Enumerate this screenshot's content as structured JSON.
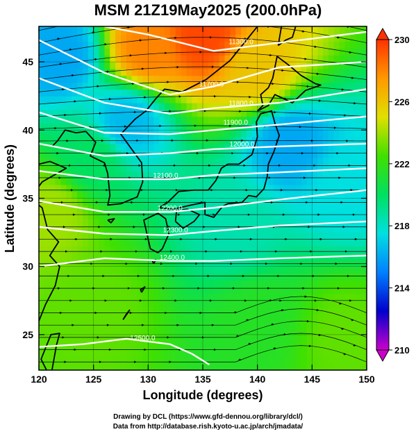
{
  "title": "MSM 21Z19May2025 (200.0hPa)",
  "credits": {
    "line1": "Drawing by DCL (https://www.gfd-dennou.org/library/dcl/)",
    "line2": "Data from http://database.rish.kyoto-u.ac.jp/arch/jmadata/"
  },
  "chart_data": {
    "type": "heatmap",
    "title": "MSM 21Z19May2025 (200.0hPa)",
    "xlabel": "Longitude (degrees)",
    "ylabel": "Latitude  (degrees)",
    "xlim": [
      120,
      150
    ],
    "ylim": [
      22.4,
      47.6
    ],
    "xticks": [
      120,
      125,
      130,
      135,
      140,
      145,
      150
    ],
    "yticks": [
      25,
      30,
      35,
      40,
      45
    ],
    "colorbar": {
      "min": 210,
      "max": 230,
      "ticks": [
        210,
        214,
        218,
        222,
        226,
        230
      ],
      "unit": "",
      "colors": [
        "#cc00cc",
        "#0000cc",
        "#0080ff",
        "#00e0e0",
        "#00e060",
        "#40e000",
        "#e0e000",
        "#ff9900",
        "#ff3300"
      ]
    },
    "contours": [
      {
        "label": "11300.0",
        "lat_at_lon": [
          [
            126,
            47.6
          ],
          [
            130,
            47.0
          ],
          [
            136,
            45.8
          ],
          [
            142,
            46.4
          ],
          [
            150,
            47.2
          ]
        ],
        "label_pos": [
          138.5,
          46.2
        ]
      },
      {
        "label": "11700.0",
        "lat_at_lon": [
          [
            120,
            46.6
          ],
          [
            126,
            44.2
          ],
          [
            132,
            42.6
          ],
          [
            136,
            43.2
          ],
          [
            142,
            44.6
          ],
          [
            150,
            45.0
          ]
        ],
        "label_pos": [
          135.8,
          43.1
        ]
      },
      {
        "label": "11800.0",
        "lat_at_lon": [
          [
            120,
            43.8
          ],
          [
            126,
            42.0
          ],
          [
            132,
            41.2
          ],
          [
            136,
            41.6
          ],
          [
            142,
            42.0
          ],
          [
            150,
            43.0
          ]
        ],
        "label_pos": [
          138.5,
          41.7
        ]
      },
      {
        "label": "11900.0",
        "lat_at_lon": [
          [
            120,
            41.3
          ],
          [
            126,
            39.8
          ],
          [
            132,
            39.7
          ],
          [
            136,
            40.0
          ],
          [
            142,
            40.4
          ],
          [
            150,
            41.0
          ]
        ],
        "label_pos": [
          138.0,
          40.3
        ]
      },
      {
        "label": "12000.0",
        "lat_at_lon": [
          [
            120,
            39.0
          ],
          [
            126,
            38.1
          ],
          [
            132,
            38.3
          ],
          [
            136,
            38.6
          ],
          [
            142,
            38.8
          ],
          [
            150,
            39.0
          ]
        ],
        "label_pos": [
          138.6,
          38.7
        ]
      },
      {
        "label": "12100.0",
        "lat_at_lon": [
          [
            120,
            37.0
          ],
          [
            126,
            36.4
          ],
          [
            132,
            36.4
          ],
          [
            136,
            36.7
          ],
          [
            142,
            36.9
          ],
          [
            150,
            37.2
          ]
        ],
        "label_pos": [
          131.6,
          36.4
        ]
      },
      {
        "label": "12200.0",
        "lat_at_lon": [
          [
            120,
            34.8
          ],
          [
            126,
            34.0
          ],
          [
            132,
            34.0
          ],
          [
            136,
            34.3
          ],
          [
            142,
            34.9
          ],
          [
            150,
            35.6
          ]
        ],
        "label_pos": [
          132.0,
          34.0
        ]
      },
      {
        "label": "12300.0",
        "lat_at_lon": [
          [
            120,
            32.9
          ],
          [
            126,
            32.4
          ],
          [
            132,
            32.3
          ],
          [
            136,
            32.6
          ],
          [
            142,
            33.0
          ],
          [
            150,
            33.3
          ]
        ],
        "label_pos": [
          132.5,
          32.4
        ]
      },
      {
        "label": "12400.0",
        "lat_at_lon": [
          [
            120,
            30.0
          ],
          [
            126,
            30.6
          ],
          [
            132,
            30.4
          ],
          [
            136,
            30.4
          ],
          [
            142,
            30.6
          ],
          [
            150,
            30.8
          ]
        ],
        "label_pos": [
          132.2,
          30.4
        ]
      },
      {
        "label": "12500.0",
        "lat_at_lon": [
          [
            120,
            24.1
          ],
          [
            124,
            24.3
          ],
          [
            128,
            24.7
          ],
          [
            132,
            24.3
          ],
          [
            134,
            23.6
          ],
          [
            135.6,
            22.8
          ]
        ],
        "label_pos": [
          129.5,
          24.5
        ]
      }
    ],
    "field_anchors": [
      {
        "lon": 135,
        "lat": 47.0,
        "value": 229.5
      },
      {
        "lon": 130,
        "lat": 46.0,
        "value": 228.0
      },
      {
        "lon": 140,
        "lat": 44.5,
        "value": 226.0
      },
      {
        "lon": 122,
        "lat": 45.5,
        "value": 216.0
      },
      {
        "lon": 128,
        "lat": 40.5,
        "value": 216.5
      },
      {
        "lon": 143,
        "lat": 39.0,
        "value": 216.0
      },
      {
        "lon": 148,
        "lat": 36.0,
        "value": 217.5
      },
      {
        "lon": 125,
        "lat": 38.0,
        "value": 220.0
      },
      {
        "lon": 138,
        "lat": 33.0,
        "value": 218.5
      },
      {
        "lon": 121,
        "lat": 34.0,
        "value": 224.0
      },
      {
        "lon": 125,
        "lat": 27.0,
        "value": 223.0
      },
      {
        "lon": 140,
        "lat": 26.0,
        "value": 221.5
      },
      {
        "lon": 148,
        "lat": 25.0,
        "value": 223.0
      }
    ]
  }
}
